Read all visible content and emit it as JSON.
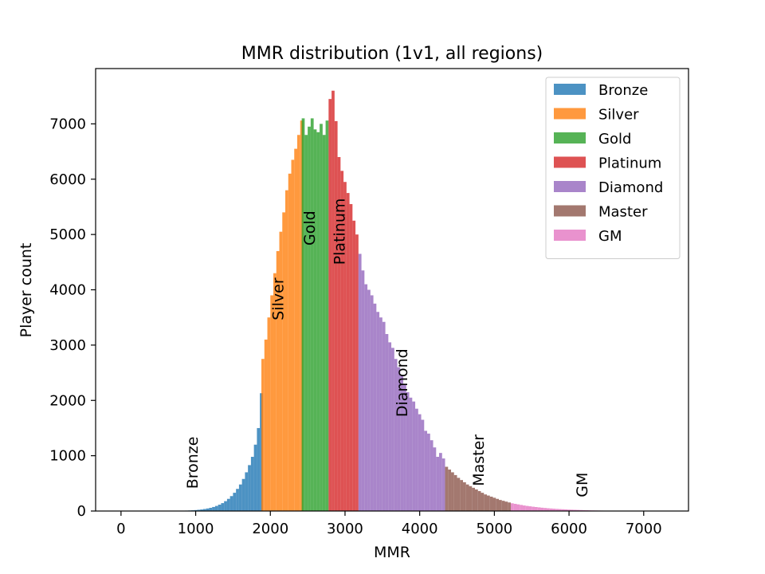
{
  "chart_data": {
    "type": "bar",
    "title": "MMR distribution (1v1, all regions)",
    "xlabel": "MMR",
    "ylabel": "Player count",
    "xlim": [
      -340,
      7600
    ],
    "ylim": [
      0,
      8000
    ],
    "xticks": [
      "0",
      "1000",
      "2000",
      "3000",
      "4000",
      "5000",
      "6000",
      "7000"
    ],
    "xtick_values": [
      0,
      1000,
      2000,
      3000,
      4000,
      5000,
      6000,
      7000
    ],
    "yticks": [
      "0",
      "1000",
      "2000",
      "3000",
      "4000",
      "5000",
      "6000",
      "7000"
    ],
    "ytick_values": [
      0,
      1000,
      2000,
      3000,
      4000,
      5000,
      6000,
      7000
    ],
    "grid": false,
    "legend_position": "top-right",
    "bin_width": 40,
    "series": [
      {
        "name": "Bronze",
        "color": "#1f77b4",
        "label": "Bronze",
        "label_x": 950,
        "label_y": 400,
        "x": [
          700,
          740,
          780,
          820,
          860,
          900,
          940,
          980,
          1020,
          1060,
          1100,
          1140,
          1180,
          1220,
          1260,
          1300,
          1340,
          1380,
          1420,
          1460,
          1500,
          1540,
          1580,
          1620,
          1660,
          1700,
          1740,
          1780,
          1820,
          1860
        ],
        "values": [
          2,
          3,
          4,
          6,
          8,
          10,
          13,
          17,
          22,
          28,
          36,
          46,
          58,
          73,
          92,
          115,
          143,
          178,
          220,
          270,
          330,
          400,
          480,
          580,
          700,
          830,
          980,
          1200,
          1500,
          2130
        ]
      },
      {
        "name": "Silver",
        "color": "#ff7f0e",
        "label": "Silver",
        "label_x": 2100,
        "label_y": 3450,
        "x": [
          1880,
          1920,
          1960,
          2000,
          2040,
          2080,
          2120,
          2160,
          2200,
          2240,
          2280,
          2320,
          2360,
          2400
        ],
        "values": [
          2750,
          3100,
          3500,
          3900,
          4300,
          4700,
          5050,
          5400,
          5800,
          6100,
          6350,
          6550,
          6800,
          7060
        ]
      },
      {
        "name": "Gold",
        "color": "#2ca02c",
        "label": "Gold",
        "label_x": 2520,
        "label_y": 4800,
        "x": [
          2420,
          2460,
          2500,
          2540,
          2580,
          2620,
          2660,
          2700,
          2740
        ],
        "values": [
          7100,
          6800,
          6950,
          7100,
          6900,
          6850,
          7000,
          6800,
          7060
        ]
      },
      {
        "name": "Platinum",
        "color": "#d62728",
        "label": "Platinum",
        "label_x": 2920,
        "label_y": 4450,
        "x": [
          2780,
          2820,
          2860,
          2900,
          2940,
          2980,
          3020,
          3060,
          3100,
          3140
        ],
        "values": [
          7450,
          7600,
          7050,
          6400,
          6150,
          5950,
          5750,
          5550,
          5250,
          5000
        ]
      },
      {
        "name": "Diamond",
        "color": "#9467bd",
        "label": "Diamond",
        "label_x": 3760,
        "label_y": 1700,
        "x": [
          3180,
          3220,
          3260,
          3300,
          3340,
          3380,
          3420,
          3460,
          3500,
          3540,
          3580,
          3620,
          3660,
          3700,
          3740,
          3780,
          3820,
          3860,
          3900,
          3940,
          3980,
          4020,
          4060,
          4100,
          4140,
          4180,
          4220,
          4260,
          4300
        ],
        "values": [
          4650,
          4350,
          4100,
          4000,
          3900,
          3750,
          3600,
          3500,
          3420,
          3200,
          3050,
          2950,
          2750,
          2600,
          2450,
          2300,
          2150,
          2050,
          1980,
          1850,
          1750,
          1650,
          1450,
          1400,
          1280,
          1150,
          980,
          1050,
          950
        ]
      },
      {
        "name": "Master",
        "color": "#8c564b",
        "label": "Master",
        "label_x": 4780,
        "label_y": 450,
        "x": [
          4340,
          4380,
          4420,
          4460,
          4500,
          4540,
          4580,
          4620,
          4660,
          4700,
          4740,
          4780,
          4820,
          4860,
          4900,
          4940,
          4980,
          5020,
          5060,
          5100,
          5140,
          5180
        ],
        "values": [
          800,
          750,
          700,
          650,
          600,
          560,
          520,
          480,
          450,
          420,
          390,
          360,
          330,
          300,
          280,
          260,
          240,
          220,
          200,
          185,
          170,
          155
        ]
      },
      {
        "name": "GM",
        "color": "#e377c2",
        "label": "GM",
        "label_x": 6170,
        "label_y": 250,
        "x": [
          5220,
          5260,
          5300,
          5340,
          5380,
          5420,
          5460,
          5500,
          5540,
          5580,
          5620,
          5660,
          5700,
          5740,
          5780,
          5820,
          5860,
          5900,
          5940,
          5980,
          6020,
          6060,
          6100,
          6140,
          6180,
          6220,
          6260,
          6300,
          6340,
          6380,
          6420,
          6460,
          6500,
          6540,
          6580,
          6620,
          6660,
          6700,
          6740,
          6780,
          6820,
          6860,
          6900,
          6940,
          6980,
          7020,
          7060
        ],
        "values": [
          140,
          130,
          120,
          110,
          100,
          92,
          85,
          78,
          72,
          66,
          60,
          55,
          50,
          46,
          42,
          38,
          35,
          32,
          29,
          26,
          24,
          22,
          20,
          18,
          16,
          14,
          12,
          11,
          10,
          9,
          8,
          7,
          6,
          5,
          5,
          4,
          4,
          3,
          3,
          2,
          2,
          2,
          2,
          1,
          1,
          1,
          1
        ]
      }
    ]
  }
}
